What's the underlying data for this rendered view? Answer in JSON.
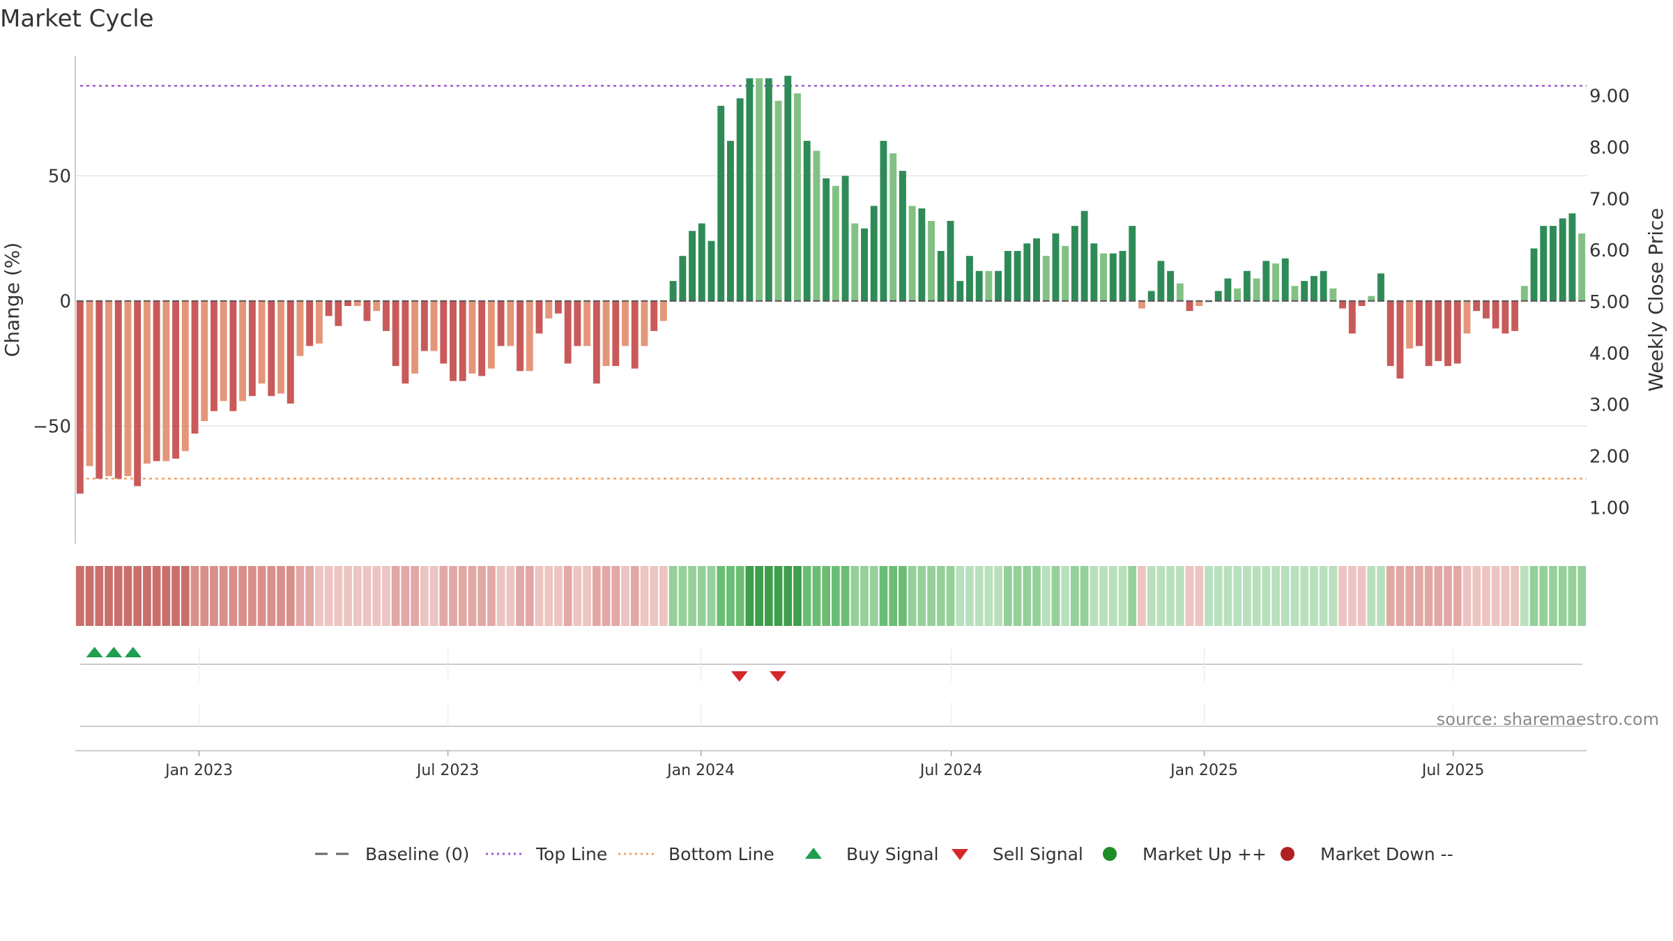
{
  "title": "Market Cycle",
  "source_text": "source: sharemaestro.com",
  "colors": {
    "strong_up": "#2e8b57",
    "weak_up": "#82c183",
    "strong_down": "#c95a5a",
    "weak_down": "#e4967a",
    "top_line": "#9b59d0",
    "bottom_line": "#f0a060",
    "buy": "#1e9e50",
    "sell": "#d62728",
    "market_up": "#1e8c28",
    "market_down": "#b02020",
    "baseline": "#555555"
  },
  "legend": [
    {
      "key": "baseline",
      "label": "Baseline (0)",
      "marker": "dash"
    },
    {
      "key": "top_line",
      "label": "Top Line",
      "marker": "dotted"
    },
    {
      "key": "bottom_line",
      "label": "Bottom Line",
      "marker": "dotted"
    },
    {
      "key": "buy",
      "label": "Buy Signal",
      "marker": "triangle-up"
    },
    {
      "key": "sell",
      "label": "Sell Signal",
      "marker": "triangle-down"
    },
    {
      "key": "market_up",
      "label": "Market Up ++",
      "marker": "circle"
    },
    {
      "key": "market_down",
      "label": "Market Down --",
      "marker": "circle"
    }
  ],
  "chart_data": {
    "type": "bar",
    "ylabel": "Change (%)",
    "y2label": "Weekly Close Price",
    "ylim": [
      -97,
      98
    ],
    "y_ticks": [
      50,
      0,
      -50
    ],
    "y_tick_labels": [
      "50",
      "0",
      "−50"
    ],
    "y2lim": [
      0.3,
      9.78
    ],
    "y2_ticks": [
      9,
      8,
      7,
      6,
      5,
      4,
      3,
      2,
      1
    ],
    "y2_tick_labels": [
      "9.00",
      "8.00",
      "7.00",
      "6.00",
      "5.00",
      "4.00",
      "3.00",
      "2.00",
      "1.00"
    ],
    "top_line": 86,
    "bottom_line": -71,
    "x_start": "2022-10-03",
    "x_end": "2025-10-06",
    "x_ticks": [
      "2023-01-01",
      "2023-07-01",
      "2024-01-01",
      "2024-07-01",
      "2025-01-01",
      "2025-07-01"
    ],
    "x_tick_labels": [
      "Jan 2023",
      "Jul 2023",
      "Jan 2024",
      "Jul 2024",
      "Jan 2025",
      "Jul 2025"
    ],
    "values": [
      -77,
      -66,
      -71,
      -70,
      -71,
      -70,
      -74,
      -65,
      -64,
      -64,
      -63,
      -60,
      -53,
      -48,
      -44,
      -40,
      -44,
      -40,
      -38,
      -33,
      -38,
      -37,
      -41,
      -22,
      -18,
      -17,
      -6,
      -10,
      -2,
      -2,
      -8,
      -4,
      -12,
      -26,
      -33,
      -29,
      -20,
      -20,
      -25,
      -32,
      -32,
      -29,
      -30,
      -27,
      -18,
      -18,
      -28,
      -28,
      -13,
      -7,
      -5,
      -25,
      -18,
      -18,
      -33,
      -26,
      -26,
      -18,
      -27,
      -18,
      -12,
      -8,
      8,
      18,
      28,
      31,
      24,
      78,
      64,
      81,
      89,
      89,
      89,
      80,
      90,
      83,
      64,
      60,
      49,
      46,
      50,
      31,
      29,
      38,
      64,
      59,
      52,
      38,
      37,
      32,
      20,
      32,
      8,
      18,
      12,
      12,
      12,
      20,
      20,
      23,
      25,
      18,
      27,
      22,
      30,
      36,
      23,
      19,
      19,
      20,
      30,
      -3,
      4,
      16,
      12,
      7,
      -4,
      -2,
      0,
      4,
      9,
      5,
      12,
      9,
      16,
      15,
      17,
      6,
      8,
      10,
      12,
      5,
      -3,
      -13,
      -2,
      2,
      11,
      -26,
      -31,
      -19,
      -18,
      -26,
      -24,
      -26,
      -25,
      -13,
      -4,
      -7,
      -11,
      -13,
      -12,
      6,
      21,
      30,
      30,
      33,
      35,
      27
    ],
    "intensity": [
      4,
      4,
      4,
      4,
      4,
      4,
      4,
      4,
      4,
      4,
      4,
      4,
      3,
      3,
      3,
      3,
      3,
      3,
      3,
      3,
      3,
      3,
      3,
      2,
      2,
      1,
      1,
      1,
      1,
      1,
      1,
      1,
      1,
      2,
      2,
      2,
      1,
      1,
      2,
      2,
      2,
      2,
      2,
      2,
      1,
      1,
      2,
      2,
      1,
      1,
      1,
      2,
      1,
      1,
      2,
      2,
      2,
      1,
      2,
      1,
      1,
      1,
      2,
      2,
      2,
      2,
      2,
      3,
      3,
      3,
      4,
      4,
      4,
      4,
      4,
      4,
      3,
      3,
      3,
      3,
      3,
      2,
      2,
      2,
      3,
      3,
      3,
      2,
      2,
      2,
      2,
      2,
      1,
      1,
      1,
      1,
      1,
      2,
      2,
      2,
      2,
      1,
      2,
      1,
      2,
      2,
      1,
      1,
      1,
      1,
      2,
      1,
      1,
      1,
      1,
      1,
      1,
      1,
      1,
      1,
      1,
      1,
      1,
      1,
      1,
      1,
      1,
      1,
      1,
      1,
      1,
      1,
      1,
      1,
      1,
      1,
      1,
      2,
      2,
      2,
      2,
      2,
      2,
      2,
      2,
      1,
      1,
      1,
      1,
      1,
      1,
      1,
      2,
      2,
      2,
      2,
      2,
      2
    ],
    "buy_signals": [
      "2022-10-17",
      "2022-10-31",
      "2022-11-14"
    ],
    "sell_signals": [
      "2024-01-29",
      "2024-02-26"
    ]
  }
}
